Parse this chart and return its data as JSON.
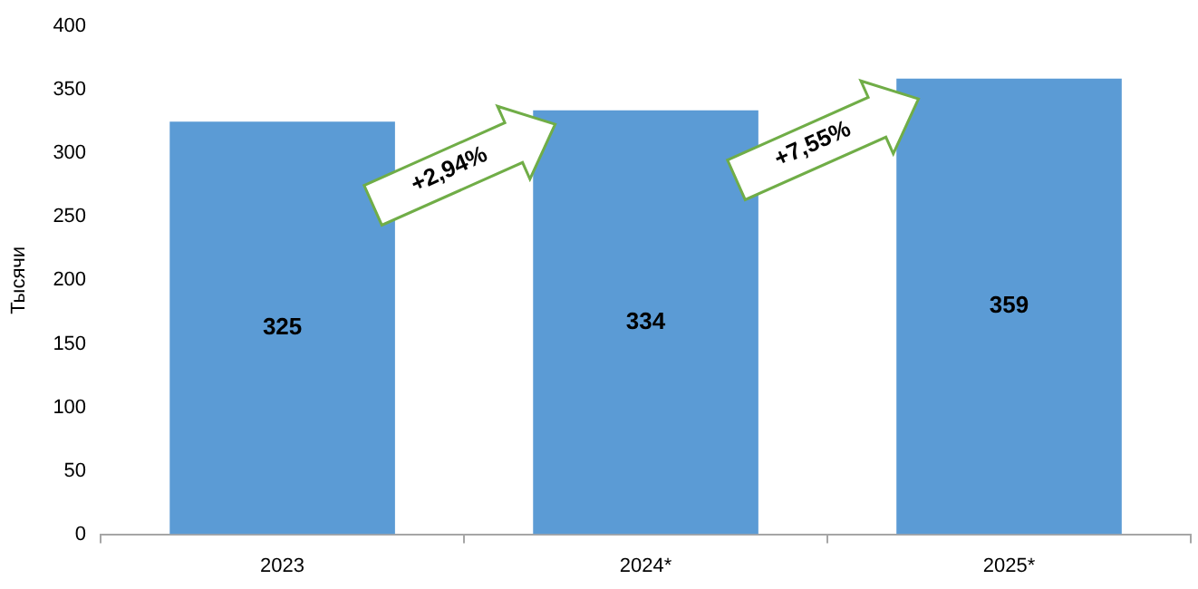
{
  "chart_data": {
    "type": "bar",
    "ylabel": "Тысячи",
    "categories": [
      "2023",
      "2024*",
      "2025*"
    ],
    "values": [
      325,
      334,
      359
    ],
    "color": "#5b9bd5",
    "ylim": [
      0,
      400
    ],
    "yticks": [
      0,
      50,
      100,
      150,
      200,
      250,
      300,
      350,
      400
    ],
    "grid": false,
    "legend": false,
    "data_labels": true,
    "annotations": [
      "+2,94%",
      "+7,55%"
    ]
  }
}
